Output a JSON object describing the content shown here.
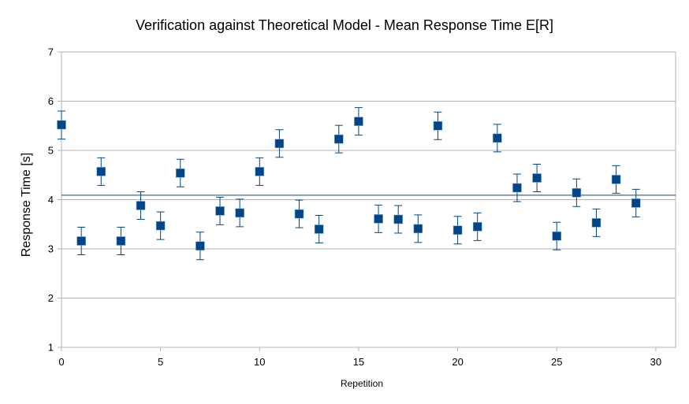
{
  "chart_data": {
    "type": "scatter",
    "title": "Verification against Theoretical Model - Mean Response Time E[R]",
    "xlabel": "Repetition",
    "ylabel": "Response Time [s]",
    "xlim": [
      0,
      31
    ],
    "ylim": [
      1,
      7
    ],
    "xticks": [
      0,
      5,
      10,
      15,
      20,
      25,
      30
    ],
    "yticks": [
      1,
      2,
      3,
      4,
      5,
      6,
      7
    ],
    "grid": "horizontal",
    "legend": "none",
    "marker_color": "#004586",
    "reference_line": {
      "y": 4.09,
      "color": "#004586"
    },
    "series": [
      {
        "x": [
          0,
          1,
          2,
          3,
          4,
          5,
          6,
          7,
          8,
          9,
          10,
          11,
          12,
          13,
          14,
          15,
          16,
          17,
          18,
          19,
          20,
          21,
          22,
          23,
          24,
          25,
          26,
          27,
          28,
          29
        ],
        "y": [
          5.52,
          3.16,
          4.57,
          3.16,
          3.88,
          3.47,
          4.54,
          3.06,
          3.77,
          3.73,
          4.57,
          5.14,
          3.71,
          3.4,
          5.23,
          5.59,
          3.61,
          3.6,
          3.41,
          5.5,
          3.38,
          3.45,
          5.25,
          4.24,
          4.44,
          3.26,
          4.14,
          3.53,
          4.41,
          3.93
        ],
        "err_low": [
          5.23,
          2.88,
          4.29,
          2.88,
          3.6,
          3.19,
          4.26,
          2.78,
          3.49,
          3.45,
          4.29,
          4.86,
          3.43,
          3.12,
          4.95,
          5.31,
          3.33,
          3.32,
          3.13,
          5.22,
          3.1,
          3.17,
          4.97,
          3.96,
          4.16,
          2.98,
          3.86,
          3.25,
          4.13,
          3.65
        ],
        "err_high": [
          5.8,
          3.44,
          4.85,
          3.44,
          4.16,
          3.75,
          4.82,
          3.34,
          4.05,
          4.01,
          4.85,
          5.42,
          3.99,
          3.68,
          5.51,
          5.87,
          3.89,
          3.88,
          3.69,
          5.78,
          3.66,
          3.73,
          5.53,
          4.52,
          4.72,
          3.54,
          4.42,
          3.81,
          4.69,
          4.21
        ]
      }
    ]
  }
}
